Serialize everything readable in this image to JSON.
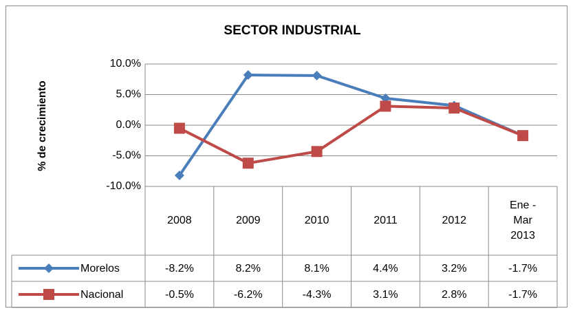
{
  "chart_data": {
    "type": "line",
    "title": "SECTOR INDUSTRIAL",
    "y_label": "% de crecimiento",
    "categories": [
      "2008",
      "2009",
      "2010",
      "2011",
      "2012",
      "Ene - Mar 2013"
    ],
    "series": [
      {
        "name": "Morelos",
        "color": "#4a7ebb",
        "marker": "diamond",
        "values": [
          -8.2,
          8.2,
          8.1,
          4.4,
          3.2,
          -1.7
        ],
        "value_labels": [
          "-8.2%",
          "8.2%",
          "8.1%",
          "4.4%",
          "3.2%",
          "-1.7%"
        ]
      },
      {
        "name": "Nacional",
        "color": "#be4b48",
        "marker": "square",
        "values": [
          -0.5,
          -6.2,
          -4.3,
          3.1,
          2.8,
          -1.7
        ],
        "value_labels": [
          "-0.5%",
          "-6.2%",
          "-4.3%",
          "3.1%",
          "2.8%",
          "-1.7%"
        ]
      }
    ],
    "ylim": [
      -10,
      10
    ],
    "yticks": [
      {
        "value": -10,
        "label": "-10.0%"
      },
      {
        "value": -5,
        "label": "-5.0%"
      },
      {
        "value": 0,
        "label": "0.0%"
      },
      {
        "value": 5,
        "label": "5.0%"
      },
      {
        "value": 10,
        "label": "10.0%"
      }
    ],
    "grid": true
  }
}
